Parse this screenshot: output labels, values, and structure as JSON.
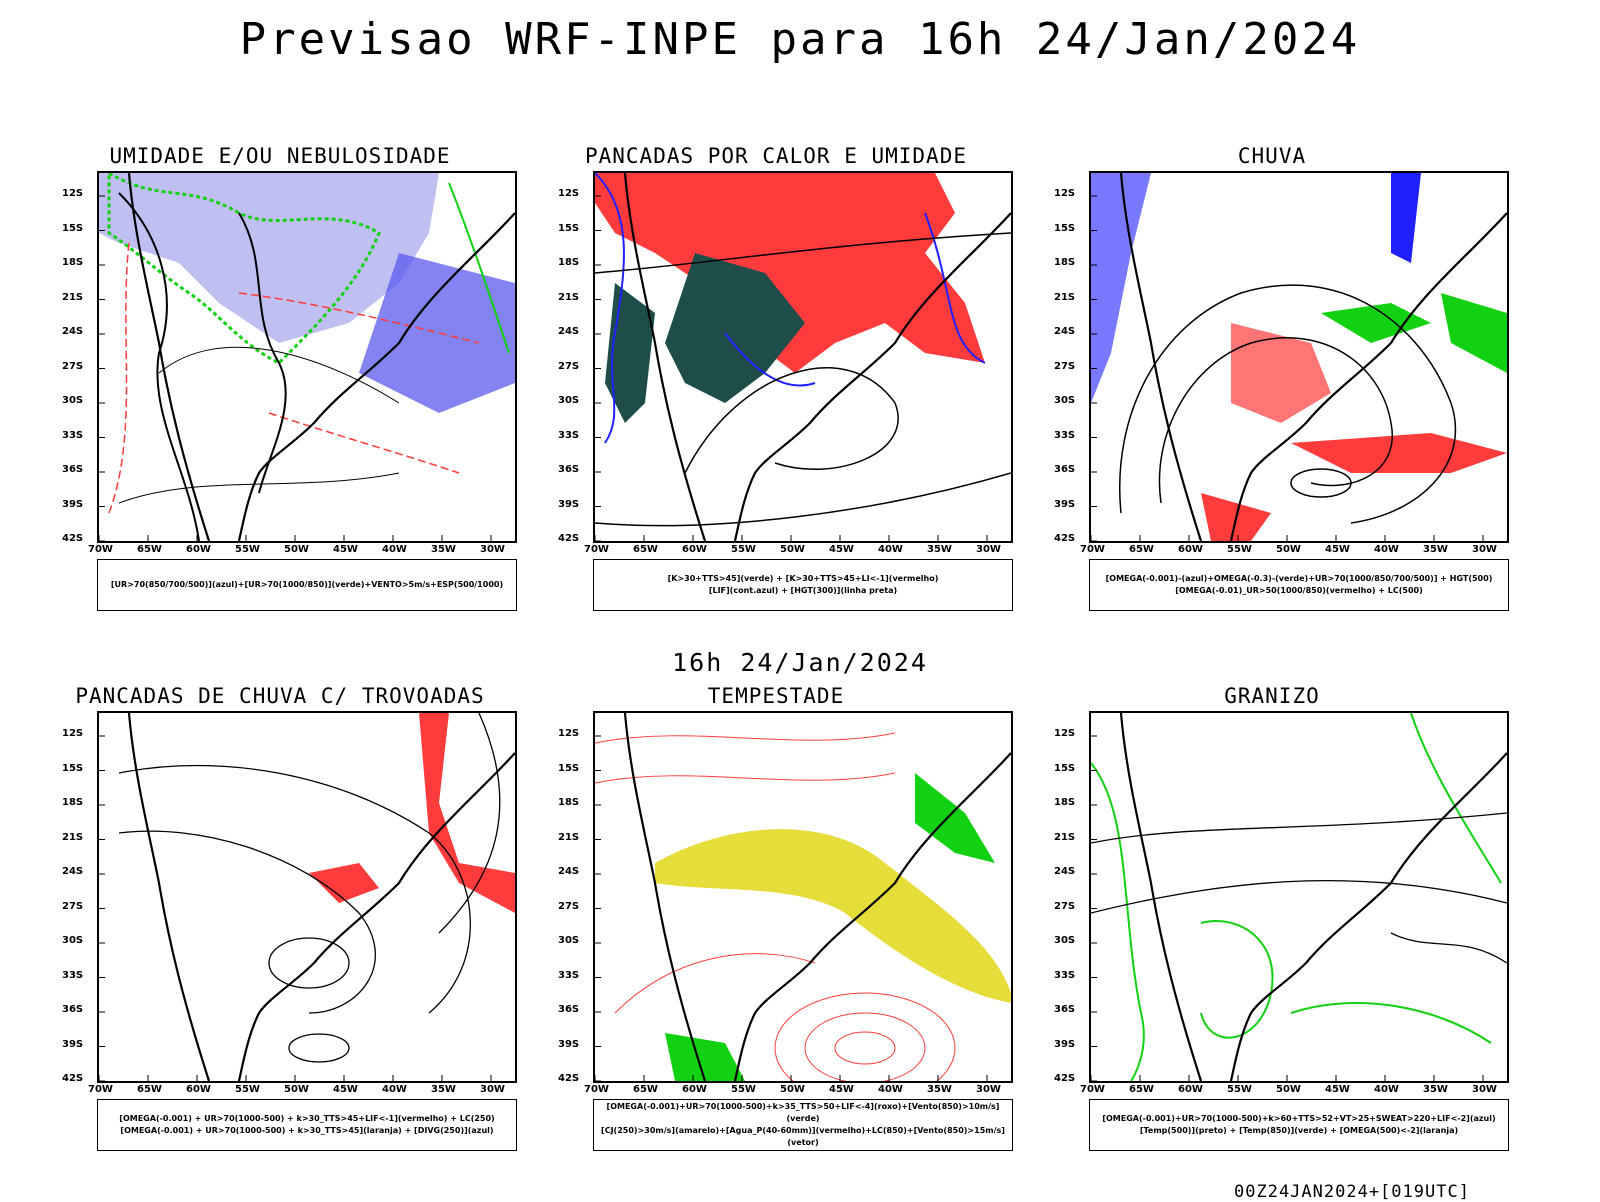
{
  "header": {
    "title": "Previsao WRF-INPE  para 16h 24/Jan/2024",
    "subtitle": "16h 24/Jan/2024",
    "run": "00Z24JAN2024+[019UTC]"
  },
  "axes": {
    "lat": [
      "12S",
      "15S",
      "18S",
      "21S",
      "24S",
      "27S",
      "30S",
      "33S",
      "36S",
      "39S",
      "42S"
    ],
    "lon": [
      "70W",
      "65W",
      "60W",
      "55W",
      "50W",
      "45W",
      "40W",
      "35W",
      "30W"
    ]
  },
  "colors": {
    "red": "#ff3b3b",
    "green": "#12d112",
    "blue": "#2020ff",
    "lavender": "#a9a9ee",
    "darkteal": "#1f4d4a",
    "yellow": "#e6dc3a",
    "orange": "#ff8c1a"
  },
  "panels": [
    {
      "title": "UMIDADE E/OU NEBULOSIDADE",
      "legend": [
        "[UR>70(850/700/500)](azul)+[UR>70(1000/850)](verde)+VENTO>5m/s+ESP(500/1000)"
      ]
    },
    {
      "title": "PANCADAS POR CALOR E UMIDADE",
      "legend": [
        "[K>30+TTS>45](verde) + [K>30+TTS>45+LI<-1](vermelho)",
        "[LIF](cont.azul) + [HGT(300)](linha preta)"
      ]
    },
    {
      "title": "CHUVA",
      "legend": [
        "[OMEGA(-0.001)-(azul)+OMEGA(-0.3)-(verde)+UR>70(1000/850/700/500)] + HGT(500)",
        "[OMEGA(-0.01)_UR>50(1000/850)(vermelho) + LC(500)"
      ]
    },
    {
      "title": "PANCADAS DE CHUVA C/ TROVOADAS",
      "legend": [
        "[OMEGA(-0.001) + UR>70(1000-500) + k>30_TTS>45+LIF<-1](vermelho) + LC(250)",
        "[OMEGA(-0.001) + UR>70(1000-500) + k>30_TTS>45](laranja) + [DIVG(250)](azul)"
      ]
    },
    {
      "title": "TEMPESTADE",
      "legend": [
        "[OMEGA(-0.001)+UR>70(1000-500)+k>35_TTS>50+LIF<-4](roxo)+[Vento(850)>10m/s](verde)",
        "[CJ(250)>30m/s](amarelo)+[Agua_P(40-60mm)](vermelho)+LC(850)+[Vento(850)>15m/s](vetor)"
      ]
    },
    {
      "title": "GRANIZO",
      "legend": [
        "[OMEGA(-0.001)+UR>70(1000-500)+k>60+TTS>52+VT>25+SWEAT>220+LIF<-2](azul)",
        "[Temp(500)](preto) + [Temp(850)](verde) + [OMEGA(500)<-2](laranja)"
      ]
    }
  ]
}
